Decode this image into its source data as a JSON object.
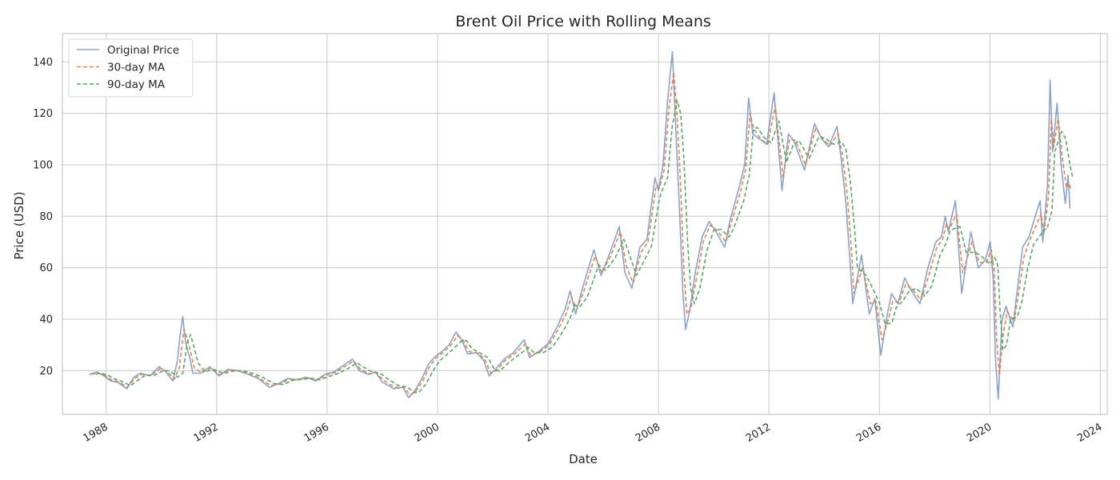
{
  "chart_data": {
    "type": "line",
    "title": "Brent Oil Price with Rolling Means",
    "xlabel": "Date",
    "ylabel": "Price (USD)",
    "xlim": [
      "1986-06-01",
      "2024-04-01"
    ],
    "ylim": [
      3,
      151
    ],
    "xticks": [
      {
        "date": "1988-01-01",
        "label": "1988"
      },
      {
        "date": "1992-01-01",
        "label": "1992"
      },
      {
        "date": "1996-01-01",
        "label": "1996"
      },
      {
        "date": "2000-01-01",
        "label": "2000"
      },
      {
        "date": "2004-01-01",
        "label": "2004"
      },
      {
        "date": "2008-01-01",
        "label": "2008"
      },
      {
        "date": "2012-01-01",
        "label": "2012"
      },
      {
        "date": "2016-01-01",
        "label": "2016"
      },
      {
        "date": "2020-01-01",
        "label": "2020"
      },
      {
        "date": "2024-01-01",
        "label": "2024"
      }
    ],
    "yticks": [
      20,
      40,
      60,
      80,
      100,
      120,
      140
    ],
    "grid": true,
    "legend_position": "top-left",
    "series": [
      {
        "name": "Original Price",
        "color": "#4c72b0",
        "style": "solid",
        "x": [
          "1987-05-20",
          "1987-09-01",
          "1987-12-01",
          "1988-03-01",
          "1988-06-01",
          "1988-10-01",
          "1989-01-01",
          "1989-04-01",
          "1989-08-01",
          "1989-12-01",
          "1990-03-01",
          "1990-06-01",
          "1990-08-01",
          "1990-09-01",
          "1990-10-10",
          "1990-11-15",
          "1991-01-10",
          "1991-02-20",
          "1991-06-01",
          "1991-10-01",
          "1992-02-01",
          "1992-06-01",
          "1992-10-01",
          "1993-03-01",
          "1993-07-01",
          "1993-12-01",
          "1994-04-01",
          "1994-08-01",
          "1994-12-01",
          "1995-04-01",
          "1995-08-01",
          "1995-12-01",
          "1996-04-01",
          "1996-08-01",
          "1996-12-01",
          "1997-03-01",
          "1997-07-01",
          "1997-10-01",
          "1998-01-01",
          "1998-06-01",
          "1998-10-01",
          "1998-12-15",
          "1999-03-01",
          "1999-06-01",
          "1999-09-01",
          "1999-12-01",
          "2000-03-01",
          "2000-06-01",
          "2000-09-01",
          "2000-11-15",
          "2001-02-01",
          "2001-06-01",
          "2001-09-01",
          "2001-11-15",
          "2002-02-01",
          "2002-06-01",
          "2002-10-01",
          "2003-02-20",
          "2003-05-01",
          "2003-09-01",
          "2004-01-01",
          "2004-05-01",
          "2004-08-15",
          "2004-10-20",
          "2005-01-01",
          "2005-04-01",
          "2005-08-30",
          "2005-12-01",
          "2006-04-01",
          "2006-08-01",
          "2006-10-15",
          "2007-01-15",
          "2007-05-01",
          "2007-08-01",
          "2007-11-15",
          "2008-01-01",
          "2008-03-01",
          "2008-05-01",
          "2008-07-03",
          "2008-08-15",
          "2008-10-01",
          "2008-11-20",
          "2008-12-24",
          "2009-02-15",
          "2009-05-01",
          "2009-08-01",
          "2009-11-01",
          "2010-02-01",
          "2010-05-25",
          "2010-08-01",
          "2010-12-01",
          "2011-02-15",
          "2011-04-08",
          "2011-06-01",
          "2011-09-01",
          "2011-12-01",
          "2012-03-10",
          "2012-06-22",
          "2012-09-15",
          "2012-12-01",
          "2013-04-15",
          "2013-08-25",
          "2013-12-01",
          "2014-03-01",
          "2014-06-20",
          "2014-08-15",
          "2014-10-15",
          "2014-12-15",
          "2015-01-13",
          "2015-05-10",
          "2015-08-20",
          "2015-11-01",
          "2016-01-20",
          "2016-04-15",
          "2016-06-10",
          "2016-09-01",
          "2016-12-01",
          "2017-03-01",
          "2017-06-20",
          "2017-09-25",
          "2018-01-15",
          "2018-04-01",
          "2018-05-20",
          "2018-07-01",
          "2018-10-03",
          "2018-12-24",
          "2019-04-25",
          "2019-08-01",
          "2019-11-01",
          "2020-01-06",
          "2020-02-15",
          "2020-03-15",
          "2020-04-21",
          "2020-06-10",
          "2020-08-01",
          "2020-10-30",
          "2021-01-01",
          "2021-03-10",
          "2021-06-01",
          "2021-10-25",
          "2021-12-01",
          "2022-02-01",
          "2022-03-08",
          "2022-04-10",
          "2022-06-08",
          "2022-08-01",
          "2022-09-25",
          "2022-11-01",
          "2022-11-25"
        ],
        "y": [
          18.5,
          19.5,
          18.0,
          16.0,
          15.5,
          13.0,
          17.5,
          19.0,
          18.0,
          21.5,
          19.5,
          16.0,
          24.0,
          33.0,
          41.0,
          31.0,
          25.0,
          19.0,
          19.0,
          21.5,
          18.0,
          20.5,
          20.0,
          18.5,
          17.0,
          13.5,
          15.0,
          17.0,
          16.5,
          17.5,
          16.0,
          18.5,
          19.5,
          22.0,
          24.5,
          20.0,
          18.5,
          19.5,
          15.5,
          13.0,
          13.5,
          9.5,
          12.0,
          16.5,
          22.5,
          25.5,
          27.5,
          30.0,
          35.0,
          32.0,
          26.5,
          27.0,
          24.0,
          18.0,
          20.5,
          24.5,
          27.0,
          32.0,
          25.0,
          27.5,
          30.5,
          37.0,
          44.0,
          51.0,
          42.0,
          52.0,
          67.0,
          57.0,
          66.0,
          76.0,
          58.0,
          52.0,
          68.0,
          71.0,
          95.0,
          90.0,
          100.0,
          125.0,
          144.0,
          115.0,
          85.0,
          50.0,
          36.0,
          43.0,
          58.0,
          72.0,
          78.0,
          74.0,
          68.0,
          78.0,
          91.0,
          100.0,
          126.0,
          112.0,
          110.0,
          108.0,
          128.0,
          90.0,
          112.0,
          109.0,
          98.0,
          116.0,
          110.0,
          107.0,
          115.0,
          102.0,
          85.0,
          60.0,
          46.0,
          65.0,
          42.0,
          48.0,
          26.0,
          42.0,
          50.0,
          46.0,
          56.0,
          51.0,
          46.0,
          59.0,
          70.0,
          72.0,
          80.0,
          74.0,
          86.0,
          50.0,
          74.0,
          60.0,
          63.0,
          70.0,
          55.0,
          25.0,
          9.0,
          40.0,
          45.0,
          37.0,
          52.0,
          68.0,
          72.0,
          86.0,
          70.0,
          92.0,
          133.0,
          105.0,
          124.0,
          100.0,
          85.0,
          96.0,
          83.0
        ]
      },
      {
        "name": "30-day MA",
        "color": "#dd8452",
        "style": "dashed",
        "x": [
          "1987-06-20",
          "1987-09-10",
          "1987-12-10",
          "1988-03-10",
          "1988-06-10",
          "1988-10-10",
          "1989-01-15",
          "1989-04-15",
          "1989-08-15",
          "1989-12-15",
          "1990-03-15",
          "1990-06-20",
          "1990-08-25",
          "1990-09-25",
          "1990-10-25",
          "1990-12-01",
          "1991-01-25",
          "1991-03-10",
          "1991-06-15",
          "1991-10-15",
          "1992-02-15",
          "1992-06-15",
          "1992-10-15",
          "1993-03-15",
          "1993-07-15",
          "1993-12-15",
          "1994-04-15",
          "1994-08-15",
          "1994-12-15",
          "1995-04-15",
          "1995-08-15",
          "1995-12-15",
          "1996-04-15",
          "1996-08-15",
          "1996-12-15",
          "1997-03-15",
          "1997-07-15",
          "1997-10-15",
          "1998-01-15",
          "1998-06-15",
          "1998-10-15",
          "1999-01-01",
          "1999-03-15",
          "1999-06-15",
          "1999-09-15",
          "1999-12-15",
          "2000-03-15",
          "2000-06-15",
          "2000-09-20",
          "2000-12-01",
          "2001-02-15",
          "2001-06-15",
          "2001-09-15",
          "2001-12-05",
          "2002-02-15",
          "2002-06-15",
          "2002-10-15",
          "2003-03-10",
          "2003-05-15",
          "2003-09-15",
          "2004-01-15",
          "2004-05-15",
          "2004-09-01",
          "2004-11-05",
          "2005-01-15",
          "2005-04-15",
          "2005-09-15",
          "2005-12-15",
          "2006-04-15",
          "2006-08-15",
          "2006-10-30",
          "2007-01-30",
          "2007-05-15",
          "2007-08-15",
          "2007-11-30",
          "2008-01-15",
          "2008-03-15",
          "2008-05-15",
          "2008-07-20",
          "2008-09-01",
          "2008-10-15",
          "2008-12-05",
          "2009-01-10",
          "2009-03-01",
          "2009-05-15",
          "2009-08-15",
          "2009-11-15",
          "2010-02-15",
          "2010-06-10",
          "2010-08-15",
          "2010-12-15",
          "2011-03-01",
          "2011-04-25",
          "2011-06-15",
          "2011-09-15",
          "2011-12-15",
          "2012-03-25",
          "2012-07-05",
          "2012-09-30",
          "2012-12-15",
          "2013-04-30",
          "2013-09-10",
          "2013-12-15",
          "2014-03-15",
          "2014-07-05",
          "2014-08-30",
          "2014-10-30",
          "2014-12-30",
          "2015-01-28",
          "2015-05-25",
          "2015-09-05",
          "2015-11-15",
          "2016-02-05",
          "2016-04-30",
          "2016-06-25",
          "2016-09-15",
          "2016-12-15",
          "2017-03-15",
          "2017-07-05",
          "2017-10-10",
          "2018-01-30",
          "2018-04-15",
          "2018-06-05",
          "2018-07-15",
          "2018-10-18",
          "2019-01-08",
          "2019-05-10",
          "2019-08-15",
          "2019-11-15",
          "2020-01-20",
          "2020-03-01",
          "2020-03-30",
          "2020-05-06",
          "2020-06-25",
          "2020-08-15",
          "2020-11-15",
          "2021-01-15",
          "2021-03-25",
          "2021-06-15",
          "2021-11-10",
          "2021-12-15",
          "2022-02-15",
          "2022-03-23",
          "2022-04-25",
          "2022-06-23",
          "2022-08-15",
          "2022-10-10",
          "2022-11-15",
          "2022-12-10"
        ],
        "y": [
          18.6,
          19.2,
          18.2,
          16.4,
          15.7,
          13.6,
          17.0,
          18.6,
          18.1,
          20.8,
          19.7,
          16.7,
          21.0,
          28.5,
          36.0,
          33.0,
          27.0,
          21.0,
          19.2,
          21.0,
          18.5,
          20.2,
          20.0,
          18.7,
          17.2,
          14.2,
          14.8,
          16.6,
          16.6,
          17.3,
          16.3,
          18.2,
          19.3,
          21.5,
          23.8,
          20.6,
          18.8,
          19.3,
          16.2,
          13.5,
          13.5,
          10.5,
          11.8,
          15.8,
          21.5,
          25.0,
          27.0,
          29.5,
          33.5,
          32.0,
          27.5,
          26.8,
          24.5,
          19.0,
          20.0,
          24.0,
          26.5,
          30.5,
          26.0,
          27.2,
          30.0,
          36.0,
          42.5,
          48.5,
          44.0,
          50.5,
          64.5,
          58.0,
          65.0,
          74.0,
          61.0,
          54.0,
          66.0,
          70.0,
          92.0,
          91.0,
          98.0,
          121.0,
          136.0,
          120.0,
          95.0,
          58.0,
          42.0,
          44.0,
          55.5,
          70.0,
          76.5,
          74.5,
          70.0,
          77.0,
          89.0,
          98.5,
          120.0,
          114.0,
          110.0,
          108.0,
          123.0,
          95.0,
          110.0,
          109.5,
          100.0,
          114.0,
          110.0,
          107.5,
          112.0,
          104.0,
          89.0,
          66.0,
          50.0,
          60.0,
          46.0,
          47.0,
          32.0,
          40.0,
          47.0,
          46.5,
          53.5,
          51.5,
          47.5,
          56.5,
          68.0,
          71.0,
          77.0,
          75.0,
          81.0,
          58.0,
          70.0,
          62.0,
          62.0,
          67.0,
          58.0,
          33.0,
          18.0,
          34.0,
          43.0,
          39.0,
          50.0,
          64.0,
          71.0,
          81.0,
          73.0,
          88.0,
          118.0,
          107.0,
          118.0,
          103.0,
          91.0,
          93.0,
          90.0
        ]
      },
      {
        "name": "90-day MA",
        "color": "#55a868",
        "style": "dashed",
        "x": [
          "1987-08-15",
          "1987-10-20",
          "1988-01-20",
          "1988-04-20",
          "1988-07-20",
          "1988-11-20",
          "1989-03-01",
          "1989-06-01",
          "1989-10-01",
          "1990-02-01",
          "1990-05-01",
          "1990-08-01",
          "1990-10-10",
          "1990-11-10",
          "1990-12-10",
          "1991-01-20",
          "1991-03-10",
          "1991-05-01",
          "1991-08-01",
          "1991-12-01",
          "1992-04-01",
          "1992-08-01",
          "1992-12-01",
          "1993-05-01",
          "1993-09-01",
          "1994-02-01",
          "1994-06-01",
          "1994-10-01",
          "1995-02-01",
          "1995-06-01",
          "1995-10-01",
          "1996-02-01",
          "1996-06-01",
          "1996-10-01",
          "1997-02-01",
          "1997-05-01",
          "1997-09-01",
          "1997-12-01",
          "1998-03-01",
          "1998-08-01",
          "1998-12-01",
          "1999-02-20",
          "1999-05-01",
          "1999-08-01",
          "1999-11-01",
          "2000-02-01",
          "2000-05-01",
          "2000-08-01",
          "2000-11-10",
          "2001-01-20",
          "2001-04-01",
          "2001-08-01",
          "2001-11-01",
          "2002-01-20",
          "2002-04-01",
          "2002-08-01",
          "2002-12-01",
          "2003-04-20",
          "2003-07-01",
          "2003-11-01",
          "2004-03-01",
          "2004-07-01",
          "2004-10-20",
          "2004-12-20",
          "2005-03-01",
          "2005-06-01",
          "2005-11-01",
          "2006-02-01",
          "2006-06-01",
          "2006-10-01",
          "2006-12-15",
          "2007-03-15",
          "2007-07-01",
          "2007-10-01",
          "2008-01-15",
          "2008-03-01",
          "2008-05-01",
          "2008-07-01",
          "2008-09-05",
          "2008-10-20",
          "2008-12-01",
          "2009-01-20",
          "2009-03-01",
          "2009-04-20",
          "2009-07-01",
          "2009-10-01",
          "2010-01-01",
          "2010-04-01",
          "2010-07-25",
          "2010-10-01",
          "2011-02-01",
          "2011-04-15",
          "2011-06-10",
          "2011-08-01",
          "2011-11-01",
          "2012-02-01",
          "2012-05-10",
          "2012-08-20",
          "2012-11-15",
          "2013-02-01",
          "2013-06-15",
          "2013-10-25",
          "2014-02-01",
          "2014-05-01",
          "2014-08-20",
          "2014-10-15",
          "2014-12-15",
          "2015-02-15",
          "2015-03-15",
          "2015-07-10",
          "2015-10-20",
          "2015-12-30",
          "2016-03-20",
          "2016-06-15",
          "2016-08-10",
          "2016-11-01",
          "2017-02-01",
          "2017-05-01",
          "2017-08-20",
          "2017-11-25",
          "2018-03-15",
          "2018-06-01",
          "2018-07-20",
          "2018-09-01",
          "2018-12-03",
          "2019-02-22",
          "2019-06-25",
          "2019-10-01",
          "2020-01-01",
          "2020-03-05",
          "2020-04-15",
          "2020-05-15",
          "2020-06-21",
          "2020-08-10",
          "2020-10-01",
          "2020-12-30",
          "2021-03-01",
          "2021-05-10",
          "2021-08-01",
          "2021-12-25",
          "2022-01-25",
          "2022-04-01",
          "2022-05-08",
          "2022-06-10",
          "2022-08-08",
          "2022-10-01",
          "2022-11-25",
          "2022-12-31"
        ],
        "y": [
          18.6,
          19.0,
          18.3,
          16.8,
          15.9,
          14.2,
          16.4,
          18.2,
          18.2,
          20.1,
          19.8,
          17.5,
          19.0,
          25.0,
          31.0,
          34.0,
          29.0,
          23.0,
          19.6,
          20.4,
          19.0,
          19.8,
          20.0,
          18.9,
          17.4,
          15.0,
          14.6,
          16.2,
          16.6,
          17.1,
          16.5,
          17.8,
          19.0,
          20.8,
          23.0,
          21.3,
          19.3,
          19.1,
          17.0,
          14.2,
          13.6,
          11.5,
          11.6,
          14.8,
          19.8,
          24.0,
          26.2,
          28.6,
          31.5,
          31.6,
          28.5,
          26.6,
          25.0,
          20.5,
          19.8,
          23.2,
          25.9,
          29.0,
          27.0,
          27.0,
          29.2,
          34.5,
          40.5,
          45.5,
          45.0,
          48.5,
          61.0,
          59.0,
          63.5,
          71.0,
          65.0,
          57.0,
          63.0,
          68.5,
          87.0,
          91.0,
          95.0,
          115.0,
          125.0,
          120.0,
          103.0,
          70.0,
          52.0,
          46.0,
          52.0,
          66.5,
          74.5,
          75.0,
          72.0,
          76.0,
          86.0,
          96.0,
          114.0,
          114.5,
          110.5,
          108.5,
          117.0,
          101.0,
          107.5,
          109.5,
          102.5,
          111.0,
          110.0,
          108.0,
          109.0,
          106.0,
          93.0,
          72.0,
          60.0,
          57.0,
          51.0,
          46.5,
          38.0,
          38.5,
          44.5,
          47.0,
          51.0,
          52.0,
          49.0,
          53.0,
          65.0,
          69.5,
          74.0,
          75.0,
          76.0,
          66.0,
          66.0,
          64.0,
          61.5,
          64.0,
          61.0,
          43.0,
          28.0,
          30.0,
          40.0,
          41.0,
          47.0,
          59.0,
          69.0,
          75.0,
          75.0,
          82.0,
          105.0,
          108.0,
          113.0,
          110.0,
          100.0,
          95.0
        ]
      }
    ]
  }
}
